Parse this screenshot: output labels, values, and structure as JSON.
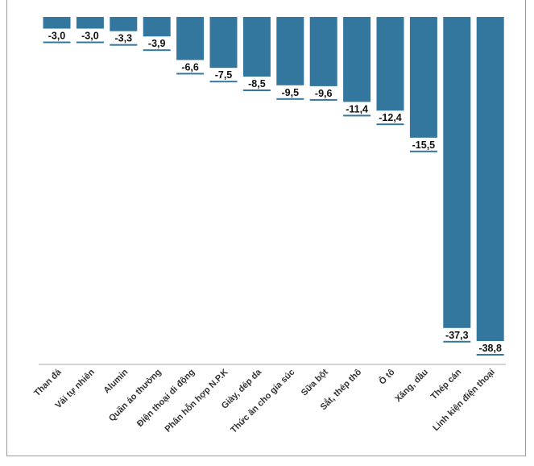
{
  "chart_data": {
    "type": "bar",
    "categories": [
      "Than đá",
      "Vải tự nhiên",
      "Alumin",
      "Quần áo thường",
      "Điện thoại di động",
      "Phân hỗn hợp N.P.K",
      "Giày, dép da",
      "Thức ăn cho gia súc",
      "Sữa bột",
      "Sắt, thép thô",
      "Ô tô",
      "Xăng, dầu",
      "Thép cán",
      "Linh kiện điện thoại"
    ],
    "values": [
      -3.0,
      -3.0,
      -3.3,
      -3.9,
      -6.6,
      -7.5,
      -8.5,
      -9.5,
      -9.6,
      -11.4,
      -12.4,
      -15.5,
      -37.3,
      -38.8
    ],
    "data_labels": [
      "-3,0",
      "-3,0",
      "-3,3",
      "-3,9",
      "-6,6",
      "-7,5",
      "-8,5",
      "-9,5",
      "-9,6",
      "-11,4",
      "-12,4",
      "-15,5",
      "-37,3",
      "-38,8"
    ],
    "title": "",
    "xlabel": "",
    "ylabel": "",
    "ylim": [
      -38.8,
      0
    ],
    "grid": false,
    "bar_color": "#34779e"
  }
}
